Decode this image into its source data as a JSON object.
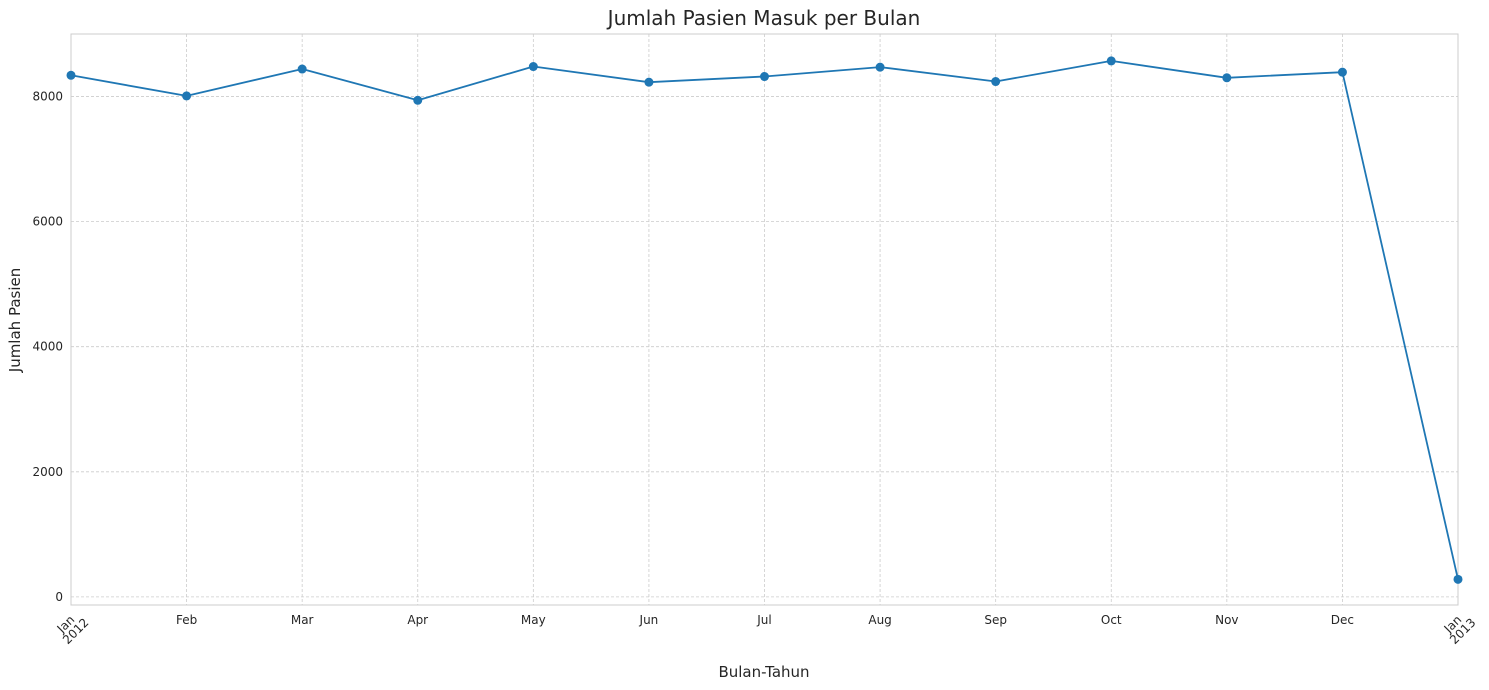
{
  "chart_data": {
    "type": "line",
    "title": "Jumlah Pasien Masuk per Bulan",
    "xlabel": "Bulan-Tahun",
    "ylabel": "Jumlah Pasien",
    "x": [
      "2012-01",
      "2012-02",
      "2012-03",
      "2012-04",
      "2012-05",
      "2012-06",
      "2012-07",
      "2012-08",
      "2012-09",
      "2012-10",
      "2012-11",
      "2012-12",
      "2013-01"
    ],
    "xtick_labels": [
      {
        "month": "Jan",
        "year": "2012"
      },
      {
        "month": "Feb",
        "year": ""
      },
      {
        "month": "Mar",
        "year": ""
      },
      {
        "month": "Apr",
        "year": ""
      },
      {
        "month": "May",
        "year": ""
      },
      {
        "month": "Jun",
        "year": ""
      },
      {
        "month": "Jul",
        "year": ""
      },
      {
        "month": "Aug",
        "year": ""
      },
      {
        "month": "Sep",
        "year": ""
      },
      {
        "month": "Oct",
        "year": ""
      },
      {
        "month": "Nov",
        "year": ""
      },
      {
        "month": "Dec",
        "year": ""
      },
      {
        "month": "Jan",
        "year": "2013"
      }
    ],
    "series": [
      {
        "values": [
          8340,
          8010,
          8440,
          7940,
          8480,
          8230,
          8320,
          8470,
          8240,
          8570,
          8300,
          8390,
          280
        ],
        "color": "#1f77b4",
        "marker": "circle"
      }
    ],
    "ylim": [
      -130,
      9000
    ],
    "yticks": [
      0,
      2000,
      4000,
      6000,
      8000
    ],
    "grid": true
  }
}
